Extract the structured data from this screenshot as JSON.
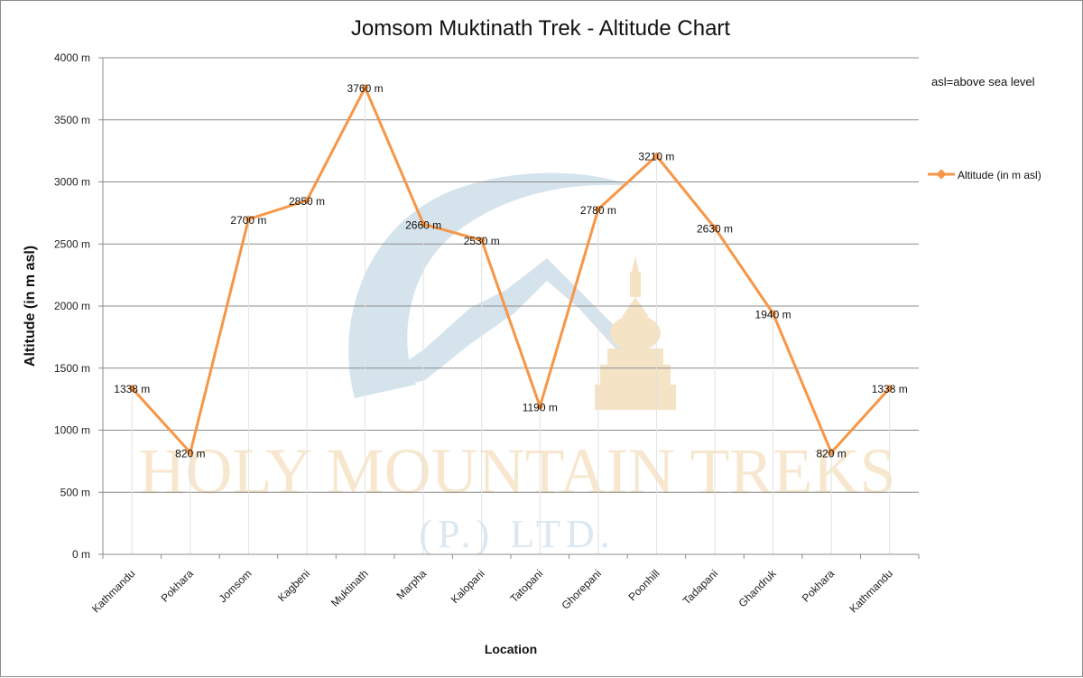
{
  "watermark": {
    "brand": "HOLY MOUNTAIN TREKS",
    "sub": "(P.) LTD.",
    "colors": {
      "swoosh": "#d5e3ec",
      "stupa": "#f5e3c6",
      "brand_text": "#f7e7cf",
      "sub_text": "#dbe8f1"
    }
  },
  "chart_data": {
    "type": "line",
    "title": "Jomsom Muktinath Trek - Altitude Chart",
    "xlabel": "Location",
    "ylabel": "Altitude (in m asl)",
    "ylim": [
      0,
      4000
    ],
    "yticks": [
      0,
      500,
      1000,
      1500,
      2000,
      2500,
      3000,
      3500,
      4000
    ],
    "ytick_labels": [
      "0 m",
      "500 m",
      "1000 m",
      "1500 m",
      "2000 m",
      "2500 m",
      "3000 m",
      "3500 m",
      "4000 m"
    ],
    "grid": true,
    "categories": [
      "Kathmandu",
      "Pokhara",
      "Jomsom",
      "Kagbeni",
      "Muktinath",
      "Marpha",
      "Kalopani",
      "Tatopani",
      "Ghorepani",
      "Poonhill",
      "Tadapani",
      "Ghandruk",
      "Pokhara",
      "Kathmandu"
    ],
    "series": [
      {
        "name": "Altitude (in  m asl)",
        "color": "#f79646",
        "values": [
          1338,
          820,
          2700,
          2850,
          3760,
          2660,
          2530,
          1190,
          2780,
          3210,
          2630,
          1940,
          820,
          1338
        ],
        "labels": [
          "1338 m",
          "820 m",
          "2700 m",
          "2850 m",
          "3760 m",
          "2660 m",
          "2530 m",
          "1190 m",
          "2780 m",
          "3210 m",
          "2630 m",
          "1940 m",
          "820 m",
          "1338 m"
        ]
      }
    ],
    "legend_position": "right",
    "annotations": [
      "asl=above sea level"
    ]
  }
}
